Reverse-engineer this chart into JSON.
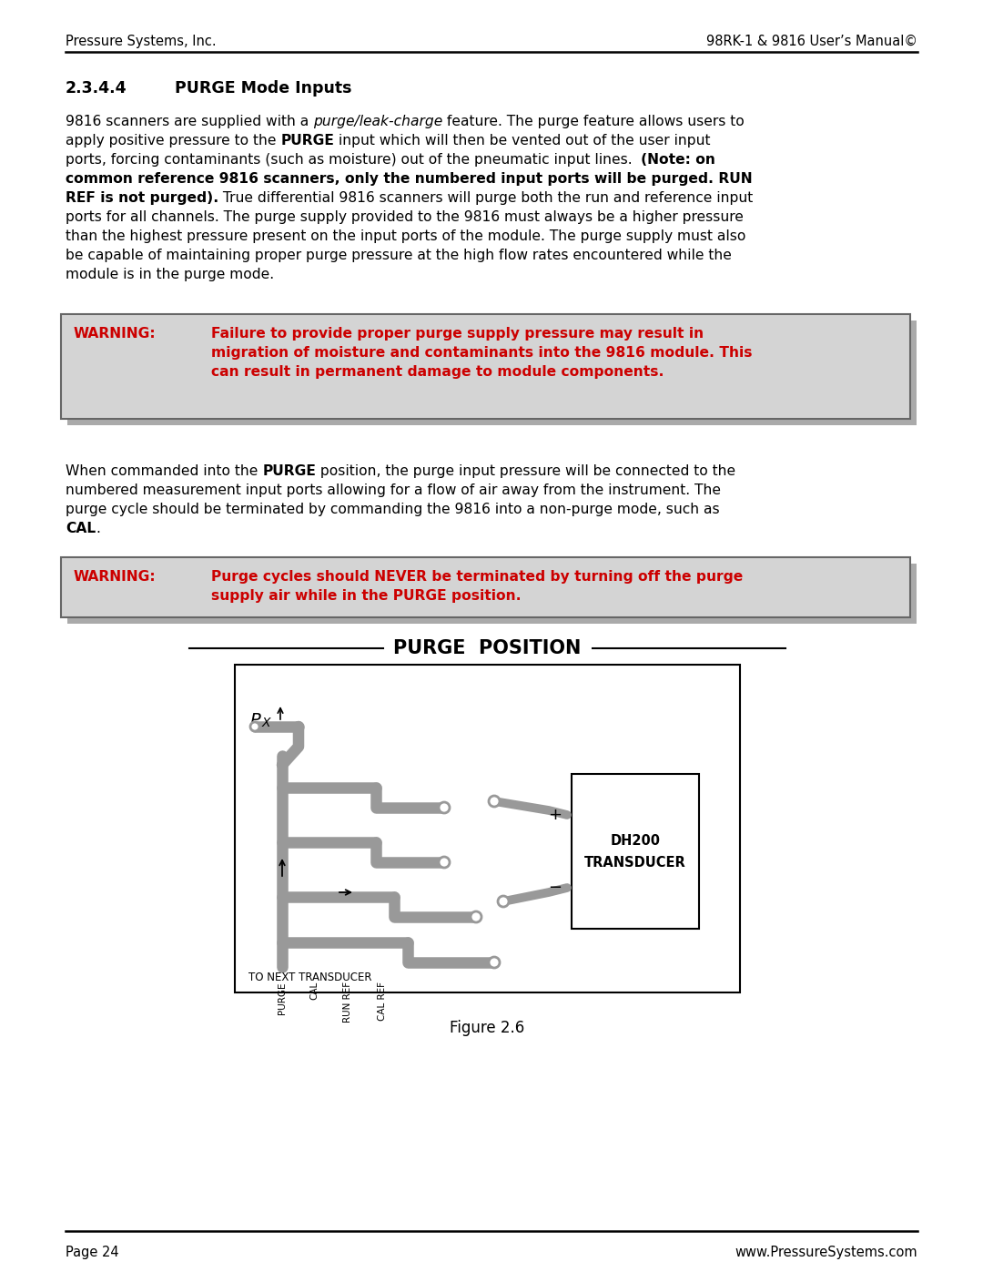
{
  "header_left": "Pressure Systems, Inc.",
  "header_right": "98RK-1 & 9816 User’s Manual©",
  "warning1_label": "WARNING:",
  "warning1_line1": "Failure to provide proper purge supply pressure may result in",
  "warning1_line2": "migration of moisture and contaminants into the 9816 module. This",
  "warning1_line3": "can result in permanent damage to module components.",
  "warning2_label": "WARNING:",
  "warning2_line1": "Purge cycles should NEVER be terminated by turning off the purge",
  "warning2_line2": "supply air while in the PURGE position.",
  "figure_caption": "Figure 2.6",
  "footer_left": "Page 24",
  "footer_right": "www.PressureSystems.com",
  "bg_color": "#ffffff",
  "text_color": "#000000",
  "red_color": "#cc0000",
  "warning_bg": "#d4d4d4",
  "shadow_color": "#aaaaaa",
  "pipe_color": "#999999",
  "body_font_size": 11.2,
  "header_font_size": 10.5,
  "section_font_size": 12.5
}
